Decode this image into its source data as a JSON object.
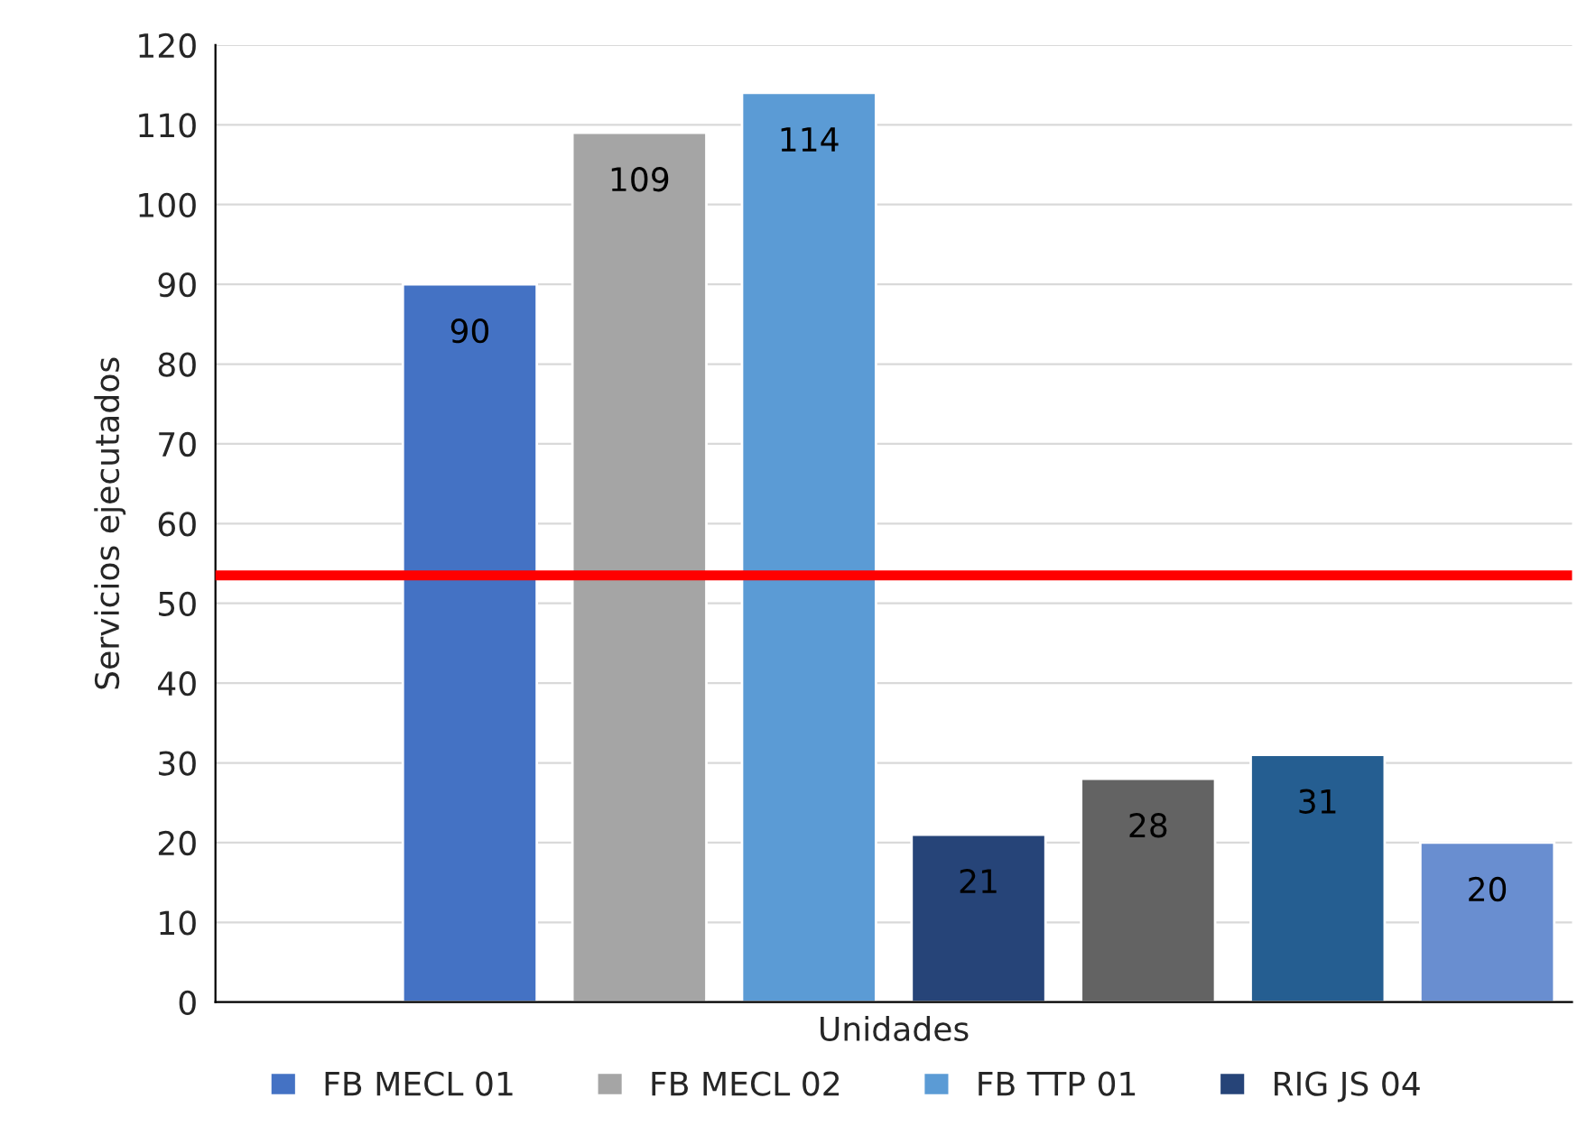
{
  "chart_data": {
    "type": "bar",
    "xlabel": "Unidades",
    "ylabel": "Servicios ejecutados",
    "categories": [
      null,
      null,
      null,
      null,
      null,
      null,
      null,
      null
    ],
    "series": [
      {
        "name": "FB MECL 01",
        "color": "#4472c4",
        "values": [
          null,
          90,
          null,
          null,
          null,
          null,
          null,
          null
        ]
      },
      {
        "name": "FB MECL 02",
        "color": "#a5a5a5",
        "values": [
          null,
          null,
          109,
          null,
          null,
          null,
          null,
          null
        ]
      },
      {
        "name": "FB TTP 01",
        "color": "#5b9bd5",
        "values": [
          null,
          null,
          null,
          114,
          null,
          null,
          null,
          null
        ]
      },
      {
        "name": "RIG JS 04",
        "color": "#264478",
        "values": [
          null,
          null,
          null,
          null,
          21,
          null,
          null,
          null
        ]
      },
      {
        "color": "#636363",
        "values": [
          null,
          null,
          null,
          null,
          null,
          28,
          null,
          null
        ]
      },
      {
        "color": "#255e91",
        "values": [
          null,
          null,
          null,
          null,
          null,
          null,
          31,
          null
        ]
      },
      {
        "color": "#698ed0",
        "values": [
          null,
          null,
          null,
          null,
          null,
          null,
          null,
          20
        ]
      }
    ],
    "ylim": [
      0,
      120
    ],
    "yticks": [
      0,
      10,
      20,
      30,
      40,
      50,
      60,
      70,
      80,
      90,
      100,
      110,
      120
    ],
    "grid": "y",
    "legend": "bottom",
    "data_labels": true,
    "ref_lines": [
      {
        "axis": "y",
        "value": 53.5,
        "color": "#ff0000"
      }
    ]
  }
}
